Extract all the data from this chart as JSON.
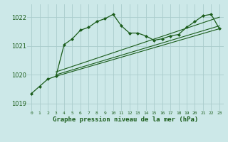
{
  "background_color": "#cce8e8",
  "grid_color": "#aacccc",
  "line_color": "#1a5c1a",
  "title": "Graphe pression niveau de la mer (hPa)",
  "xlim": [
    -0.5,
    23.5
  ],
  "ylim": [
    1018.75,
    1022.45
  ],
  "yticks": [
    1019,
    1020,
    1021,
    1022
  ],
  "xticks": [
    0,
    1,
    2,
    3,
    4,
    5,
    6,
    7,
    8,
    9,
    10,
    11,
    12,
    13,
    14,
    15,
    16,
    17,
    18,
    19,
    20,
    21,
    22,
    23
  ],
  "trend1_x": [
    3,
    23
  ],
  "trend1_y": [
    1019.95,
    1021.6
  ],
  "trend2_x": [
    3,
    23
  ],
  "trend2_y": [
    1020.0,
    1021.7
  ],
  "trend3_x": [
    3,
    23
  ],
  "trend3_y": [
    1020.1,
    1022.0
  ],
  "main_x": [
    0,
    1,
    2,
    3,
    4,
    5,
    6,
    7,
    8,
    9,
    10,
    11,
    12,
    13,
    14,
    15,
    16,
    17,
    18,
    19,
    20,
    21,
    22,
    23
  ],
  "main_y": [
    1019.35,
    1019.6,
    1019.85,
    1019.95,
    1021.05,
    1021.25,
    1021.55,
    1021.65,
    1021.85,
    1021.95,
    1022.1,
    1021.7,
    1021.45,
    1021.45,
    1021.35,
    1021.2,
    1021.25,
    1021.35,
    1021.4,
    1021.65,
    1021.85,
    1022.05,
    1022.1,
    1021.6
  ],
  "marker_x": [
    0,
    1,
    2,
    3,
    4,
    5,
    6,
    7,
    8,
    9,
    10,
    11,
    12,
    13,
    14,
    15,
    16,
    17,
    18,
    19,
    20,
    21,
    22,
    23
  ],
  "marker_y": [
    1019.35,
    1019.6,
    1019.85,
    1019.95,
    1021.05,
    1021.25,
    1021.55,
    1021.65,
    1021.85,
    1021.95,
    1022.1,
    1021.7,
    1021.45,
    1021.45,
    1021.35,
    1021.2,
    1021.25,
    1021.35,
    1021.4,
    1021.65,
    1021.85,
    1022.05,
    1022.1,
    1021.6
  ]
}
